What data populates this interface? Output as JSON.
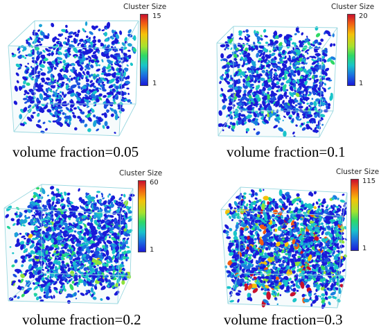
{
  "panels": [
    {
      "caption": "volume fraction=0.05",
      "colorbar": {
        "title": "Cluster Size",
        "max": "15",
        "min": "1"
      }
    },
    {
      "caption": "volume fraction=0.1",
      "colorbar": {
        "title": "Cluster Size",
        "max": "20",
        "min": "1"
      }
    },
    {
      "caption": "volume fraction=0.2",
      "colorbar": {
        "title": "Cluster Size",
        "max": "60",
        "min": "1"
      }
    },
    {
      "caption": "volume fraction=0.3",
      "colorbar": {
        "title": "Cluster Size",
        "max": "115",
        "min": "1"
      }
    }
  ],
  "colors": {
    "low": "#1a1ad8",
    "mid_low": "#1b9be0",
    "mid": "#2fd866",
    "mid_high": "#f5c20a",
    "high": "#c8102e",
    "box_edge": "#9ad8e0"
  }
}
